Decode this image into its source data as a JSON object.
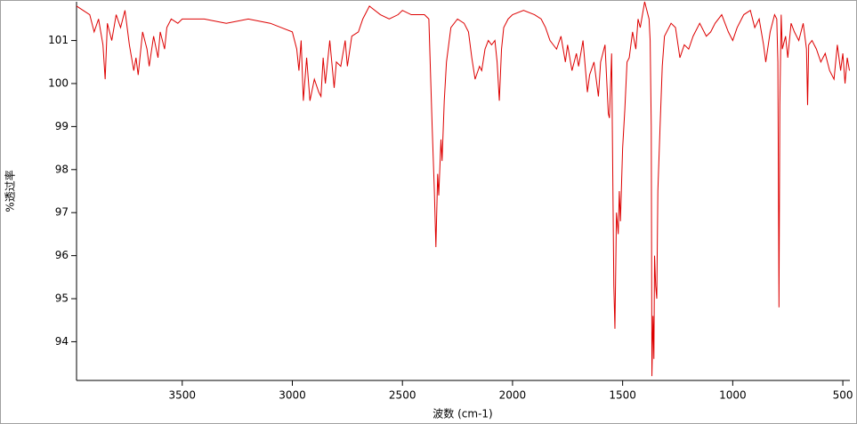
{
  "chart_data": {
    "type": "line",
    "x_label": "波数 (cm-1)",
    "y_label": "%透过率",
    "color": "#dd0000",
    "xlim": [
      3980,
      468
    ],
    "ylim": [
      93.1,
      101.9
    ],
    "xticks": [
      3500,
      3000,
      2500,
      2000,
      1500,
      1000,
      500
    ],
    "yticks": [
      94,
      95,
      96,
      97,
      98,
      99,
      100,
      101
    ],
    "x": [
      3980,
      3950,
      3920,
      3900,
      3880,
      3860,
      3850,
      3840,
      3820,
      3800,
      3780,
      3760,
      3740,
      3720,
      3710,
      3700,
      3680,
      3660,
      3650,
      3630,
      3610,
      3600,
      3580,
      3570,
      3550,
      3520,
      3500,
      3400,
      3300,
      3200,
      3100,
      3050,
      3000,
      2980,
      2970,
      2960,
      2950,
      2935,
      2920,
      2900,
      2880,
      2870,
      2860,
      2850,
      2830,
      2810,
      2800,
      2780,
      2760,
      2750,
      2730,
      2700,
      2680,
      2650,
      2600,
      2560,
      2520,
      2500,
      2460,
      2400,
      2380,
      2365,
      2355,
      2348,
      2340,
      2335,
      2325,
      2320,
      2310,
      2300,
      2280,
      2250,
      2220,
      2200,
      2185,
      2170,
      2150,
      2140,
      2125,
      2110,
      2095,
      2080,
      2070,
      2060,
      2050,
      2040,
      2020,
      2000,
      1950,
      1900,
      1870,
      1850,
      1830,
      1800,
      1780,
      1760,
      1750,
      1730,
      1710,
      1700,
      1680,
      1660,
      1650,
      1630,
      1610,
      1600,
      1580,
      1565,
      1560,
      1550,
      1540,
      1535,
      1528,
      1520,
      1515,
      1510,
      1500,
      1490,
      1480,
      1470,
      1455,
      1440,
      1430,
      1420,
      1410,
      1400,
      1390,
      1380,
      1375,
      1370,
      1367,
      1362,
      1358,
      1355,
      1350,
      1345,
      1340,
      1330,
      1320,
      1310,
      1280,
      1260,
      1240,
      1220,
      1200,
      1180,
      1150,
      1120,
      1100,
      1080,
      1050,
      1020,
      1000,
      980,
      950,
      920,
      900,
      880,
      860,
      850,
      830,
      810,
      800,
      795,
      790,
      786,
      780,
      775,
      760,
      750,
      735,
      720,
      700,
      680,
      665,
      660,
      655,
      640,
      620,
      600,
      580,
      560,
      540,
      525,
      510,
      500,
      490,
      480,
      470
    ],
    "values": [
      101.8,
      101.7,
      101.6,
      101.2,
      101.5,
      100.9,
      100.1,
      101.4,
      101.0,
      101.6,
      101.3,
      101.7,
      100.9,
      100.3,
      100.6,
      100.2,
      101.2,
      100.8,
      100.4,
      101.1,
      100.6,
      101.2,
      100.8,
      101.3,
      101.5,
      101.4,
      101.5,
      101.5,
      101.4,
      101.5,
      101.4,
      101.3,
      101.2,
      100.8,
      100.3,
      101.0,
      99.6,
      100.6,
      99.6,
      100.1,
      99.8,
      99.7,
      100.6,
      100.0,
      101.0,
      99.9,
      100.5,
      100.4,
      101.0,
      100.4,
      101.1,
      101.2,
      101.5,
      101.8,
      101.6,
      101.5,
      101.6,
      101.7,
      101.6,
      101.6,
      101.5,
      99.0,
      97.5,
      96.2,
      97.9,
      97.4,
      98.7,
      98.2,
      99.6,
      100.5,
      101.3,
      101.5,
      101.4,
      101.2,
      100.6,
      100.1,
      100.4,
      100.3,
      100.8,
      101.0,
      100.9,
      101.0,
      100.5,
      99.6,
      100.8,
      101.3,
      101.5,
      101.6,
      101.7,
      101.6,
      101.5,
      101.3,
      101.0,
      100.8,
      101.1,
      100.5,
      100.9,
      100.3,
      100.7,
      100.4,
      101.0,
      99.8,
      100.2,
      100.5,
      99.7,
      100.5,
      100.9,
      99.3,
      99.2,
      100.7,
      95.3,
      94.3,
      97.0,
      96.5,
      97.5,
      96.8,
      98.5,
      99.4,
      100.5,
      100.6,
      101.2,
      100.8,
      101.5,
      101.3,
      101.6,
      101.9,
      101.7,
      101.5,
      101.0,
      99.0,
      93.2,
      94.6,
      93.6,
      96.0,
      95.3,
      95.0,
      97.5,
      99.0,
      100.4,
      101.1,
      101.4,
      101.3,
      100.6,
      100.9,
      100.8,
      101.1,
      101.4,
      101.1,
      101.2,
      101.4,
      101.6,
      101.2,
      101.0,
      101.3,
      101.6,
      101.7,
      101.3,
      101.5,
      100.9,
      100.5,
      101.2,
      101.6,
      101.5,
      100.5,
      94.8,
      99.5,
      101.6,
      100.8,
      101.1,
      100.6,
      101.4,
      101.2,
      101.0,
      101.4,
      100.8,
      99.5,
      100.9,
      101.0,
      100.8,
      100.5,
      100.7,
      100.3,
      100.1,
      100.9,
      100.3,
      100.7,
      100.0,
      100.6,
      100.3
    ]
  }
}
